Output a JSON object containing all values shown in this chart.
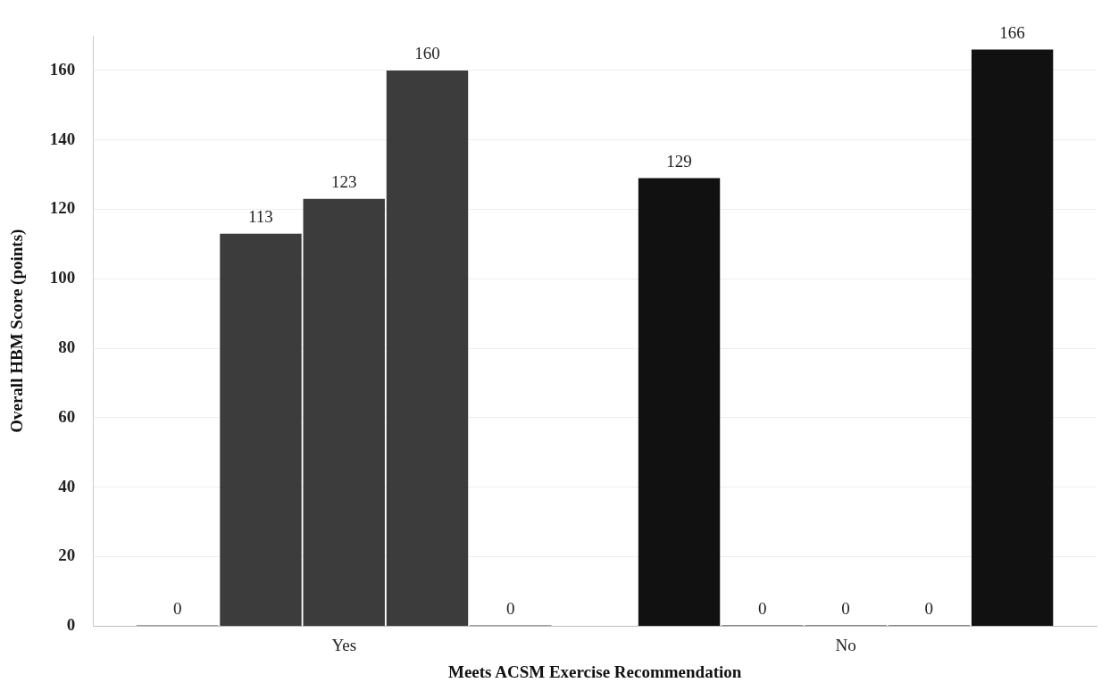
{
  "chart_data": {
    "type": "bar",
    "xlabel": "Meets ACSM Exercise Recommendation",
    "ylabel": "Overall HBM Score (points)",
    "categories": [
      "Yes",
      "No"
    ],
    "series": [
      {
        "colors": [
          "#3c3c3c",
          "#111111"
        ],
        "values": [
          0,
          129
        ]
      },
      {
        "colors": [
          "#3c3c3c",
          "#111111"
        ],
        "values": [
          113,
          0
        ]
      },
      {
        "colors": [
          "#3c3c3c",
          "#111111"
        ],
        "values": [
          123,
          0
        ]
      },
      {
        "colors": [
          "#3c3c3c",
          "#111111"
        ],
        "values": [
          160,
          0
        ]
      },
      {
        "colors": [
          "#3c3c3c",
          "#111111"
        ],
        "values": [
          0,
          166
        ]
      }
    ],
    "ylim": [
      0,
      170
    ],
    "yticks": [
      0,
      20,
      40,
      60,
      80,
      100,
      120,
      140,
      160
    ],
    "grid": "y",
    "legend": false,
    "data_labels": true
  }
}
